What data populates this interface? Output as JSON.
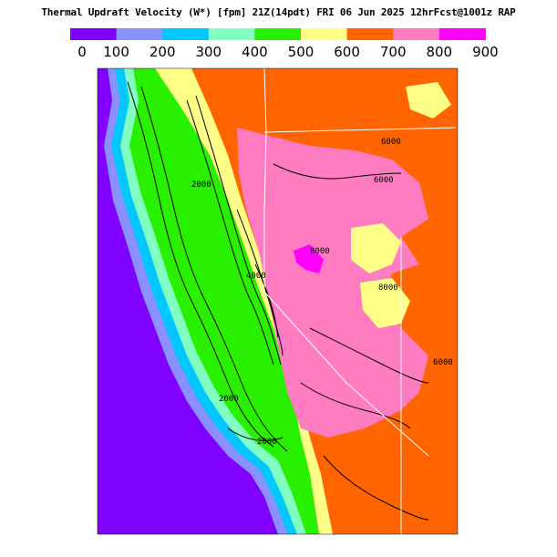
{
  "header": {
    "title": "Thermal Updraft Velocity (W*) [fpm] 21Z(14pdt) FRI 06 Jun 2025 12hrFcst@1001z RAP"
  },
  "legend": {
    "tick_labels": [
      "0",
      "100",
      "200",
      "300",
      "400",
      "500",
      "600",
      "700",
      "800",
      "900"
    ],
    "colors": [
      "#8000ff",
      "#8891ff",
      "#00c8ff",
      "#80ffc0",
      "#28f000",
      "#ffff88",
      "#ff6400",
      "#ff7cc0",
      "#ff00ff"
    ],
    "ranges": [
      [
        0,
        100
      ],
      [
        100,
        200
      ],
      [
        200,
        300
      ],
      [
        300,
        400
      ],
      [
        400,
        500
      ],
      [
        500,
        600
      ],
      [
        600,
        700
      ],
      [
        700,
        800
      ],
      [
        800,
        900
      ]
    ]
  },
  "map": {
    "contour_labels": [
      "6000",
      "8000",
      "6000",
      "8000",
      "2000",
      "4000",
      "2000",
      "2000",
      "6000"
    ],
    "colors": {
      "ocean": "#8000ff",
      "coast": "#8891ff",
      "shore": "#00c8ff",
      "low": "#80ffc0",
      "valley": "#28f000",
      "hills": "#ffff88",
      "mountain": "#ff6400",
      "high": "#ff7cc0",
      "peak": "#ff00ff",
      "border": "#ffffff",
      "contour": "#000000"
    }
  }
}
